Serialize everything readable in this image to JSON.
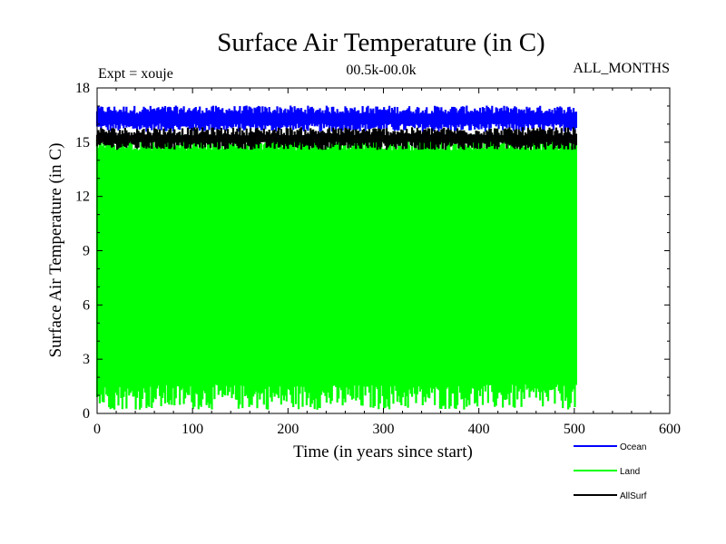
{
  "chart_data": {
    "type": "line",
    "title": "Surface Air Temperature (in C)",
    "subtitle_left": "Expt = xouje",
    "subtitle_center": "00.5k-00.0k",
    "subtitle_right": "ALL_MONTHS",
    "xlabel": "Time (in years since start)",
    "ylabel": "Surface Air Temperature (in C)",
    "xlim": [
      0,
      600
    ],
    "ylim": [
      0,
      18
    ],
    "xticks": [
      0,
      100,
      200,
      300,
      400,
      500,
      600
    ],
    "yticks": [
      0,
      3,
      6,
      9,
      12,
      15,
      18
    ],
    "xtick_labels": [
      "0",
      "100",
      "200",
      "300",
      "400",
      "500",
      "600"
    ],
    "ytick_labels": [
      "0",
      "3",
      "6",
      "9",
      "12",
      "15",
      "18"
    ],
    "grid": false,
    "legend_position": "bottom-right",
    "series": [
      {
        "name": "Ocean",
        "color": "#0000ff",
        "x_range": [
          0,
          502
        ],
        "annual_cycle_band": [
          15.8,
          16.8
        ],
        "mean": 16.3
      },
      {
        "name": "Land",
        "color": "#00ff00",
        "x_range": [
          0,
          502
        ],
        "annual_cycle_band": [
          0.9,
          15.0
        ],
        "mean": 8.0
      },
      {
        "name": "AllSurf",
        "color": "#000000",
        "x_range": [
          0,
          502
        ],
        "annual_cycle_band": [
          14.8,
          15.6
        ],
        "mean": 15.2
      }
    ]
  }
}
